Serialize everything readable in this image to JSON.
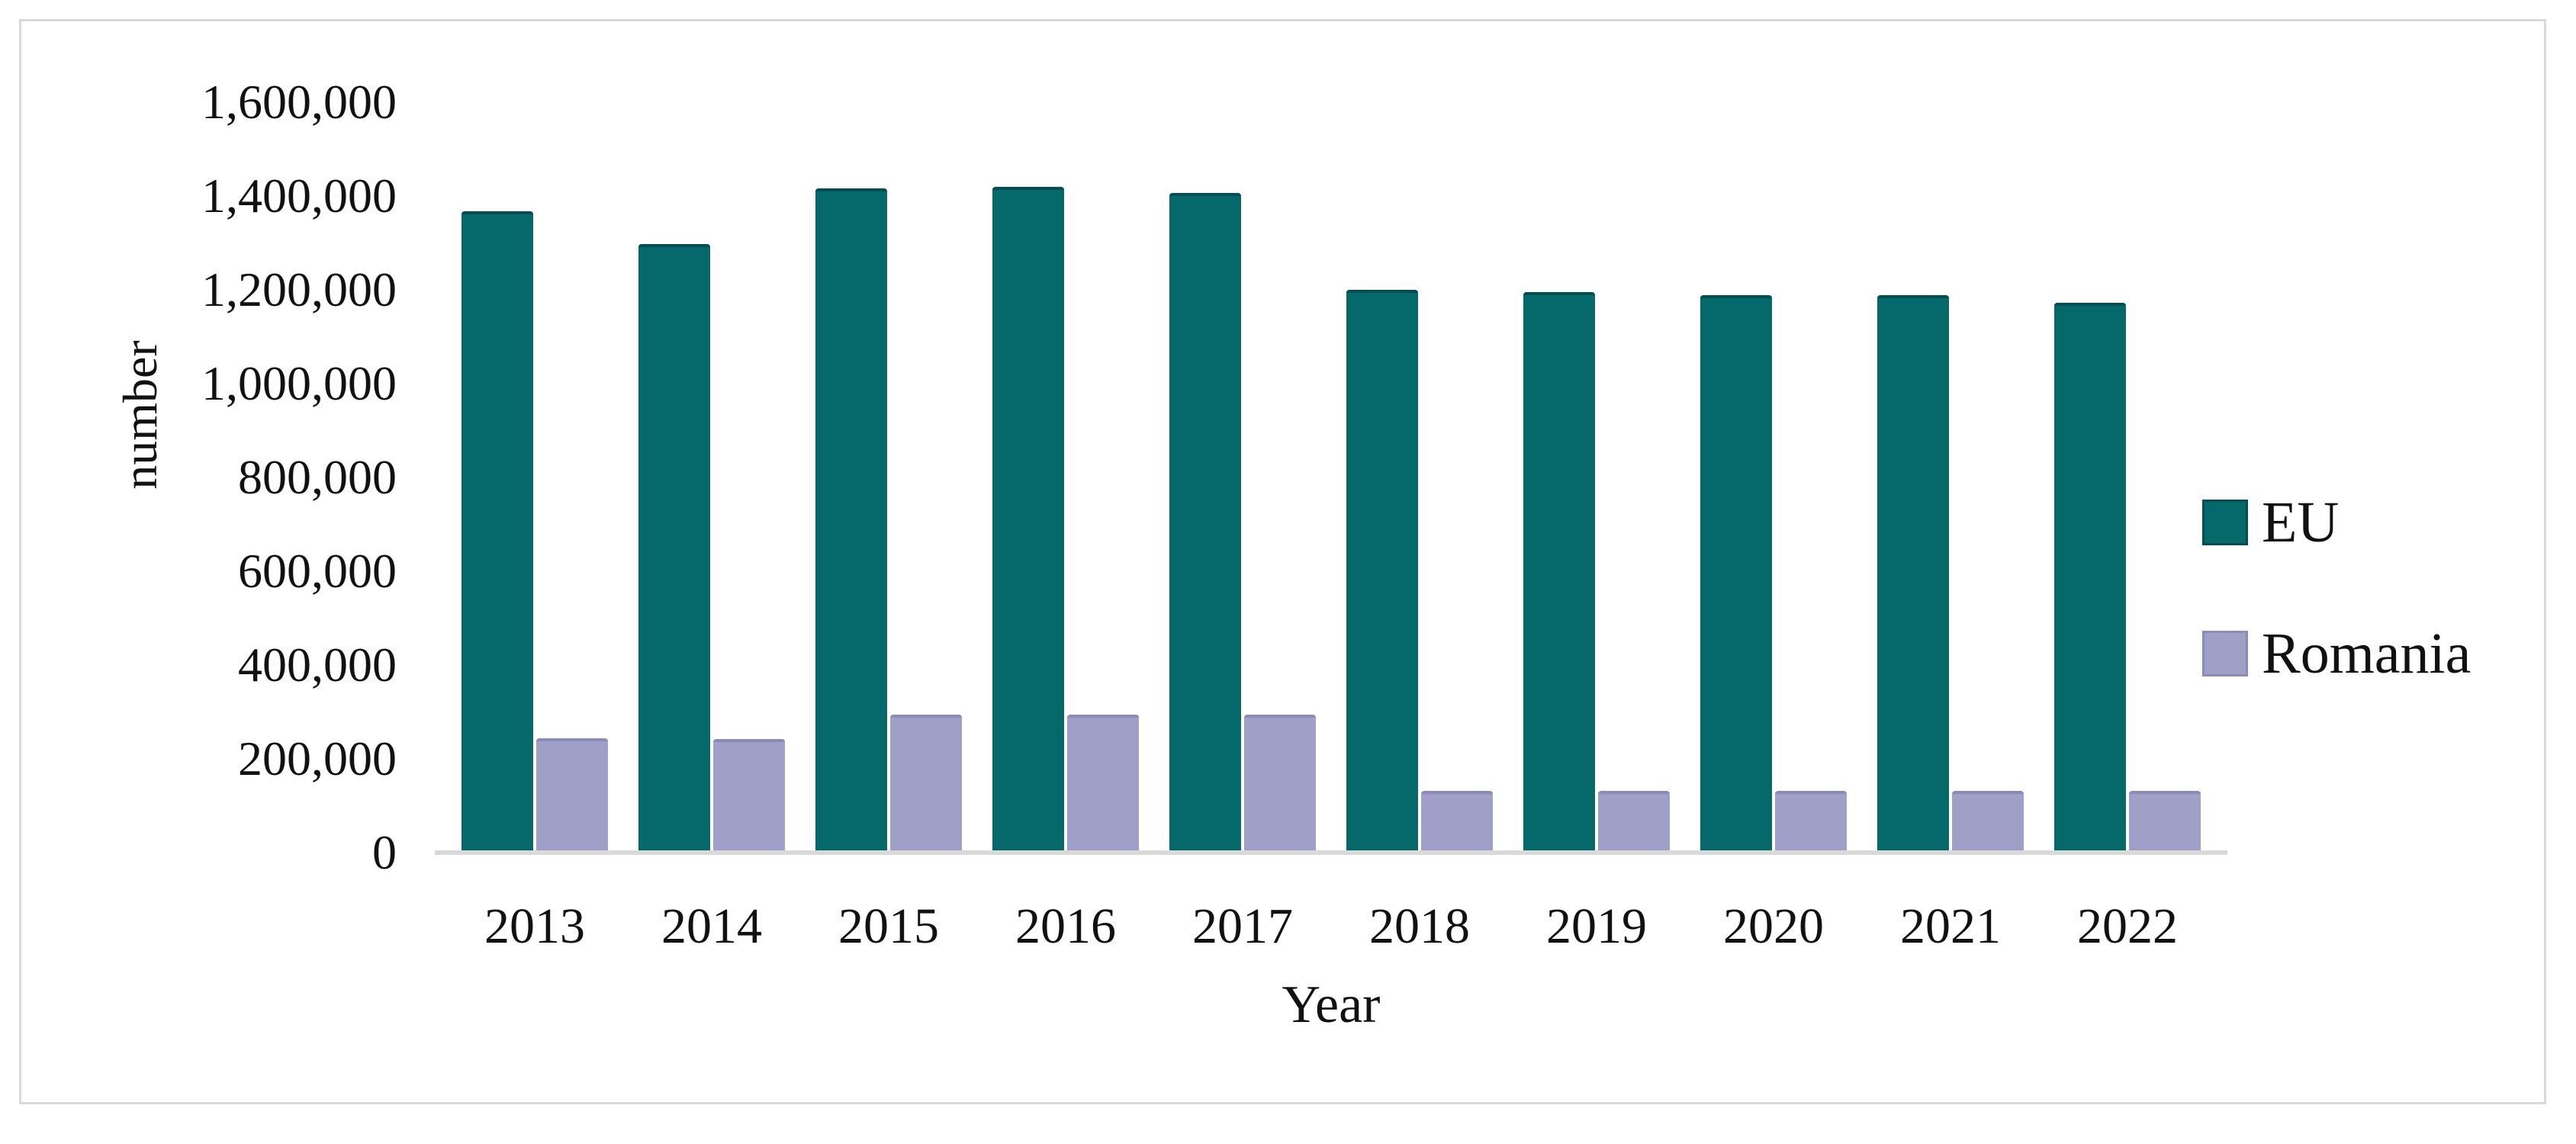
{
  "figure": {
    "kind": "grouped-bar-chart-figure"
  },
  "chart_data": {
    "type": "bar",
    "title": "",
    "categories": [
      "2013",
      "2014",
      "2015",
      "2016",
      "2017",
      "2018",
      "2019",
      "2020",
      "2021",
      "2022"
    ],
    "series": [
      {
        "name": "EU",
        "color": "#05696c",
        "edge_color": "#034e51",
        "values": [
          1367000,
          1298000,
          1416000,
          1420000,
          1407000,
          1200000,
          1195000,
          1189000,
          1189000,
          1172000
        ]
      },
      {
        "name": "Romania",
        "color": "#a09fc8",
        "edge_color": "#8b8ab8",
        "values": [
          244000,
          242000,
          294000,
          294000,
          294000,
          132000,
          132000,
          132000,
          132000,
          132000
        ]
      }
    ],
    "xlabel": "Year",
    "ylabel": "number",
    "ylim": [
      0,
      1600000
    ],
    "ytick_step": 200000,
    "yticks": [
      "0",
      "200,000",
      "400,000",
      "600,000",
      "800,000",
      "1,000,000",
      "1,200,000",
      "1,400,000",
      "1,600,000"
    ],
    "grid": false,
    "legend_position": "right",
    "axis_line_color": "#d9d9d9",
    "border_color": "#d9d9d9"
  }
}
